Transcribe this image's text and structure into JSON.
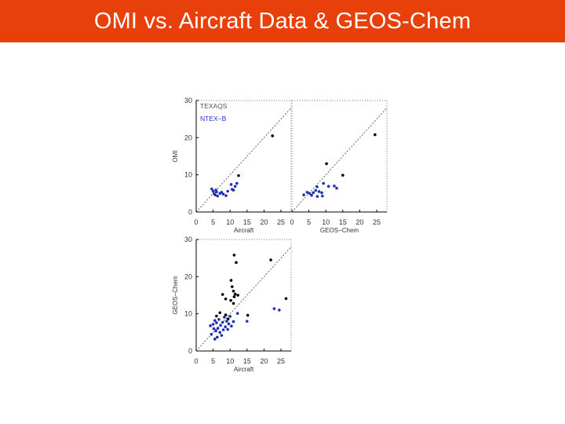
{
  "header": {
    "title": "OMI vs. Aircraft Data & GEOS-Chem"
  },
  "colors": {
    "header_bg": "#e8400a",
    "series_black": "#000000",
    "series_blue": "#1f2fb0"
  },
  "legend": [
    {
      "label": "TEXAQS",
      "color": "#555555"
    },
    {
      "label": "NTEX−B",
      "color": "#2233cc"
    }
  ],
  "chart_data": [
    {
      "id": "omi_vs_aircraft",
      "type": "scatter",
      "xlabel": "Aircraft",
      "ylabel": "OMI",
      "xlim": [
        0,
        28
      ],
      "ylim": [
        0,
        30
      ],
      "x_ticks": [
        "0",
        "5",
        "10",
        "15",
        "20",
        "25"
      ],
      "y_ticks": [
        "0",
        "10",
        "20",
        "30"
      ],
      "reference_line": "1:1",
      "series": [
        {
          "name": "TEXAQS",
          "color": "#000000",
          "points": [
            [
              22.5,
              20.5
            ],
            [
              12.5,
              9.8
            ]
          ]
        },
        {
          "name": "NTEX−B",
          "color": "#1f2fb0",
          "points": [
            [
              4.6,
              6.2
            ],
            [
              5.0,
              5.6
            ],
            [
              5.3,
              4.9
            ],
            [
              5.6,
              4.6
            ],
            [
              6.0,
              5.4
            ],
            [
              6.3,
              4.3
            ],
            [
              7.0,
              5.0
            ],
            [
              7.5,
              5.3
            ],
            [
              8.0,
              4.8
            ],
            [
              8.8,
              4.4
            ],
            [
              9.3,
              5.6
            ],
            [
              10.3,
              7.4
            ],
            [
              10.6,
              6.1
            ],
            [
              11.0,
              5.9
            ],
            [
              11.5,
              6.9
            ],
            [
              12.0,
              7.7
            ],
            [
              5.8,
              5.9
            ]
          ]
        }
      ]
    },
    {
      "id": "omi_vs_geoschem",
      "type": "scatter",
      "xlabel": "GEOS−Chem",
      "ylabel": "",
      "xlim": [
        0,
        28
      ],
      "ylim": [
        0,
        30
      ],
      "x_ticks": [
        "0",
        "5",
        "10",
        "15",
        "20",
        "25"
      ],
      "y_ticks": [],
      "reference_line": "1:1",
      "series": [
        {
          "name": "TEXAQS",
          "color": "#000000",
          "points": [
            [
              24.5,
              20.8
            ],
            [
              10.2,
              13.0
            ],
            [
              15.0,
              9.9
            ]
          ]
        },
        {
          "name": "NTEX−B",
          "color": "#1f2fb0",
          "points": [
            [
              3.5,
              4.6
            ],
            [
              4.5,
              5.3
            ],
            [
              5.2,
              5.0
            ],
            [
              5.8,
              4.5
            ],
            [
              6.3,
              5.2
            ],
            [
              7.0,
              5.8
            ],
            [
              7.4,
              6.8
            ],
            [
              8.0,
              5.5
            ],
            [
              8.8,
              5.2
            ],
            [
              9.3,
              7.7
            ],
            [
              10.8,
              6.9
            ],
            [
              12.5,
              7.0
            ],
            [
              13.2,
              6.4
            ],
            [
              7.5,
              4.2
            ],
            [
              9.0,
              4.3
            ]
          ]
        }
      ]
    },
    {
      "id": "geoschem_vs_aircraft",
      "type": "scatter",
      "xlabel": "Aircraft",
      "ylabel": "GEOS−Chem",
      "xlim": [
        0,
        28
      ],
      "ylim": [
        0,
        30
      ],
      "x_ticks": [
        "0",
        "5",
        "10",
        "15",
        "20",
        "25"
      ],
      "y_ticks": [
        "0",
        "10",
        "20",
        "30"
      ],
      "reference_line": "1:1",
      "series": [
        {
          "name": "TEXAQS",
          "color": "#000000",
          "points": [
            [
              11.2,
              25.8
            ],
            [
              11.8,
              23.8
            ],
            [
              22.0,
              24.5
            ],
            [
              10.3,
              19.0
            ],
            [
              10.6,
              17.3
            ],
            [
              11.0,
              16.1
            ],
            [
              11.5,
              15.3
            ],
            [
              11.2,
              14.6
            ],
            [
              12.3,
              15.0
            ],
            [
              10.2,
              13.6
            ],
            [
              11.0,
              12.8
            ],
            [
              7.8,
              15.2
            ],
            [
              8.7,
              14.0
            ],
            [
              26.5,
              14.1
            ],
            [
              15.2,
              9.6
            ],
            [
              7.0,
              10.3
            ],
            [
              6.0,
              9.4
            ],
            [
              8.7,
              9.7
            ],
            [
              9.4,
              8.6
            ]
          ]
        },
        {
          "name": "NTEX−B",
          "color": "#1f2fb0",
          "points": [
            [
              4.2,
              6.8
            ],
            [
              4.5,
              4.5
            ],
            [
              5.0,
              7.2
            ],
            [
              5.2,
              6.0
            ],
            [
              5.5,
              8.2
            ],
            [
              5.8,
              5.4
            ],
            [
              6.0,
              7.6
            ],
            [
              6.2,
              3.7
            ],
            [
              6.4,
              6.1
            ],
            [
              6.7,
              8.5
            ],
            [
              7.0,
              5.0
            ],
            [
              7.2,
              6.9
            ],
            [
              7.5,
              4.2
            ],
            [
              7.8,
              7.7
            ],
            [
              8.0,
              5.7
            ],
            [
              8.3,
              9.1
            ],
            [
              8.6,
              6.5
            ],
            [
              9.0,
              8.0
            ],
            [
              9.3,
              5.8
            ],
            [
              9.6,
              7.3
            ],
            [
              10.0,
              9.3
            ],
            [
              10.4,
              6.7
            ],
            [
              11.0,
              7.9
            ],
            [
              12.2,
              10.1
            ],
            [
              15.0,
              8.0
            ],
            [
              23.0,
              11.4
            ],
            [
              24.5,
              11.0
            ],
            [
              5.5,
              3.2
            ]
          ]
        }
      ]
    }
  ]
}
